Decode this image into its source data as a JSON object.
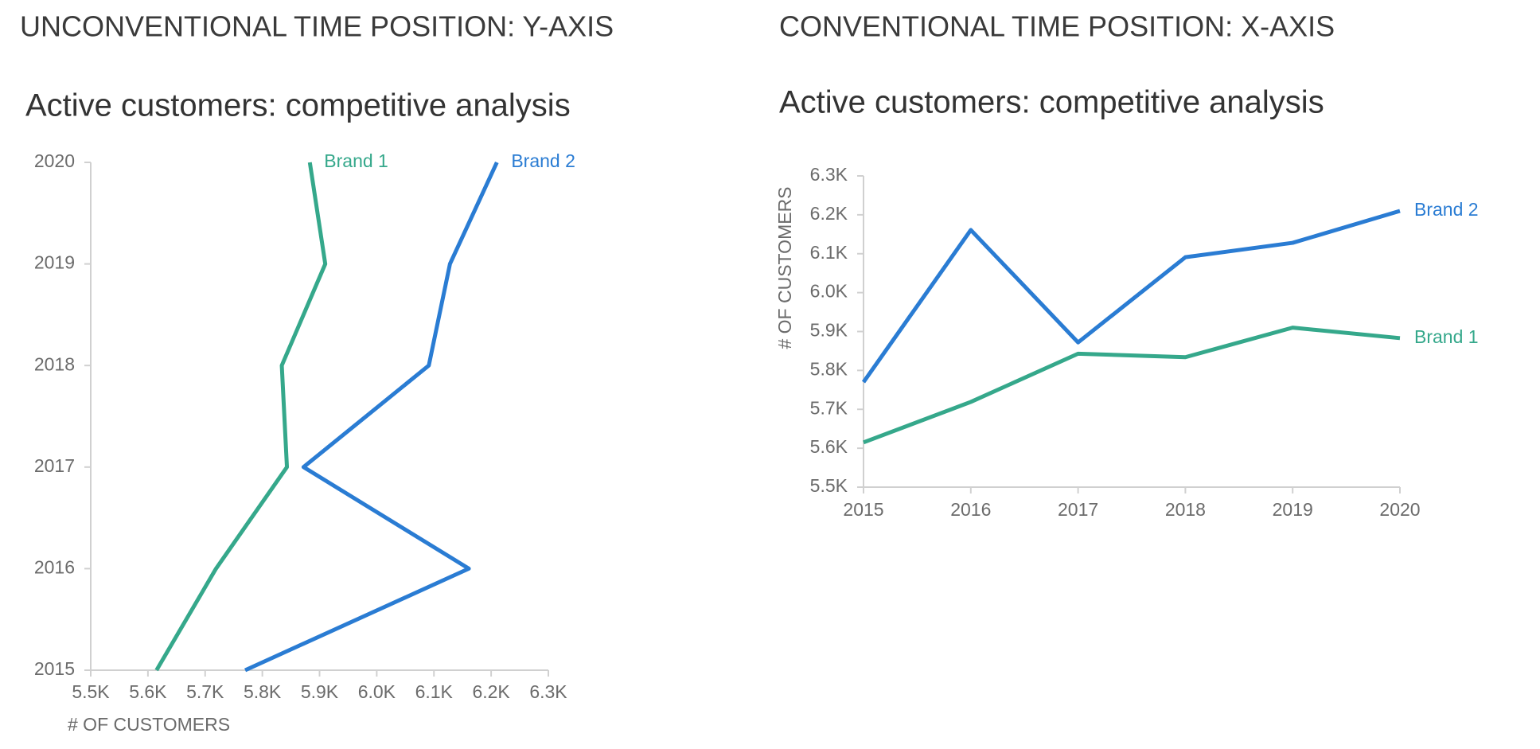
{
  "chart_data": [
    {
      "type": "line",
      "time_axis": "y",
      "heading": "UNCONVENTIONAL TIME POSITION: Y-AXIS",
      "title": "Active customers: competitive analysis",
      "xlabel": "# OF CUSTOMERS",
      "categories": [
        "2015",
        "2016",
        "2017",
        "2018",
        "2019",
        "2020"
      ],
      "series": [
        {
          "name": "Brand 1",
          "color": "#35a88b",
          "values": [
            5615,
            5719,
            5843,
            5834,
            5910,
            5883
          ]
        },
        {
          "name": "Brand 2",
          "color": "#2a7cd3",
          "values": [
            5770,
            6161,
            5872,
            6091,
            6128,
            6210
          ]
        }
      ],
      "xlim": [
        5500,
        6300
      ],
      "xticks": [
        {
          "value": 5500,
          "label": "5.5K"
        },
        {
          "value": 5600,
          "label": "5.6K"
        },
        {
          "value": 5700,
          "label": "5.7K"
        },
        {
          "value": 5800,
          "label": "5.8K"
        },
        {
          "value": 5900,
          "label": "5.9K"
        },
        {
          "value": 6000,
          "label": "6.0K"
        },
        {
          "value": 6100,
          "label": "6.1K"
        },
        {
          "value": 6200,
          "label": "6.2K"
        },
        {
          "value": 6300,
          "label": "6.3K"
        }
      ]
    },
    {
      "type": "line",
      "time_axis": "x",
      "heading": "CONVENTIONAL TIME POSITION: X-AXIS",
      "title": "Active customers: competitive analysis",
      "ylabel": "# OF CUSTOMERS",
      "categories": [
        "2015",
        "2016",
        "2017",
        "2018",
        "2019",
        "2020"
      ],
      "series": [
        {
          "name": "Brand 1",
          "color": "#35a88b",
          "values": [
            5615,
            5719,
            5843,
            5834,
            5910,
            5883
          ]
        },
        {
          "name": "Brand 2",
          "color": "#2a7cd3",
          "values": [
            5770,
            6161,
            5872,
            6091,
            6128,
            6210
          ]
        }
      ],
      "ylim": [
        5500,
        6300
      ],
      "yticks": [
        {
          "value": 5500,
          "label": "5.5K"
        },
        {
          "value": 5600,
          "label": "5.6K"
        },
        {
          "value": 5700,
          "label": "5.7K"
        },
        {
          "value": 5800,
          "label": "5.8K"
        },
        {
          "value": 5900,
          "label": "5.9K"
        },
        {
          "value": 6000,
          "label": "6.0K"
        },
        {
          "value": 6100,
          "label": "6.1K"
        },
        {
          "value": 6200,
          "label": "6.2K"
        },
        {
          "value": 6300,
          "label": "6.3K"
        }
      ]
    }
  ]
}
